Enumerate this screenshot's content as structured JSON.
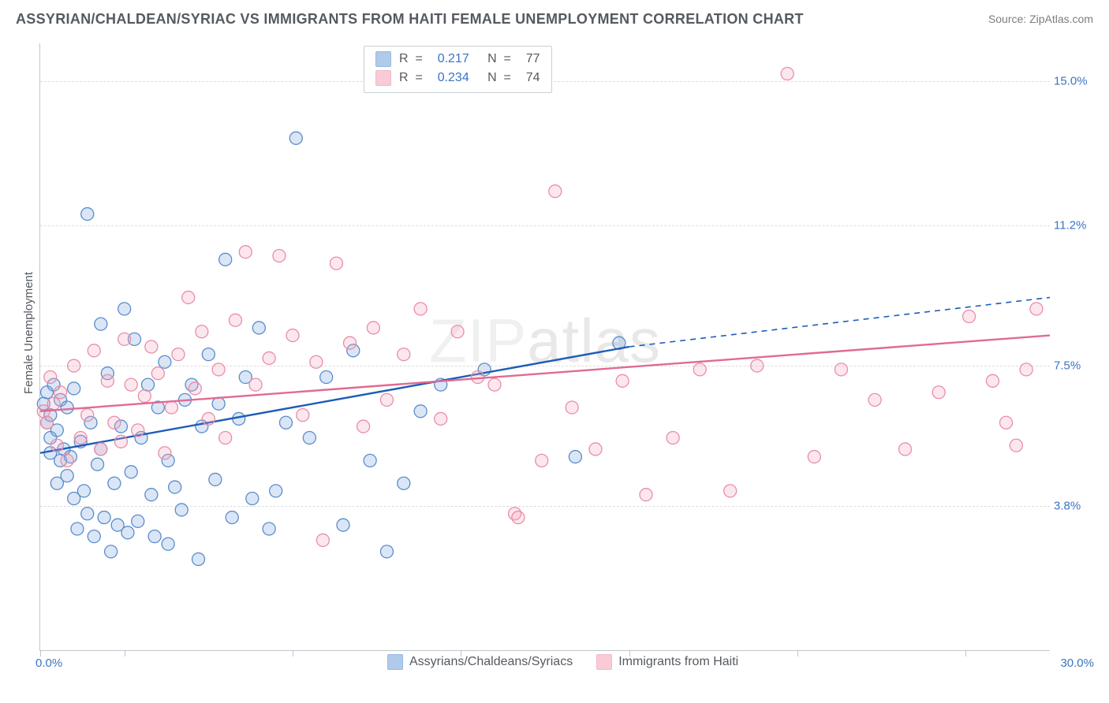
{
  "header": {
    "title": "ASSYRIAN/CHALDEAN/SYRIAC VS IMMIGRANTS FROM HAITI FEMALE UNEMPLOYMENT CORRELATION CHART",
    "source": "Source: ZipAtlas.com"
  },
  "watermark": {
    "pre": "ZIP",
    "post": "atlas"
  },
  "chart": {
    "type": "scatter",
    "ylabel": "Female Unemployment",
    "xlim": [
      0,
      30
    ],
    "ylim": [
      0,
      16
    ],
    "xlim_labels": {
      "min": "0.0%",
      "max": "30.0%"
    },
    "ytick_values": [
      3.8,
      7.5,
      11.2,
      15.0
    ],
    "ytick_labels": [
      "3.8%",
      "7.5%",
      "11.2%",
      "15.0%"
    ],
    "xtick_values": [
      0,
      2.5,
      7.5,
      12.5,
      17.5,
      22.5,
      27.5
    ],
    "background_color": "#ffffff",
    "grid_color": "#dcdcdc",
    "marker_radius": 8,
    "marker_fill_opacity": 0.28,
    "marker_stroke_width": 1.3,
    "regression_line_width": 2.4,
    "series": [
      {
        "id": "assyrians",
        "label": "Assyrians/Chaldeans/Syriacs",
        "fill": "#7ba7dd",
        "stroke": "#5a8ccb",
        "line_color": "#1e5db8",
        "r_value": "0.217",
        "n_value": "77",
        "regression": {
          "x1": 0,
          "y1": 5.2,
          "x2_solid": 17.5,
          "y2_solid": 8.0,
          "x2_dash": 30,
          "y2_dash": 9.3
        },
        "points": [
          [
            0.1,
            6.5
          ],
          [
            0.2,
            6.0
          ],
          [
            0.2,
            6.8
          ],
          [
            0.3,
            6.2
          ],
          [
            0.3,
            5.2
          ],
          [
            0.3,
            5.6
          ],
          [
            0.4,
            7.0
          ],
          [
            0.5,
            5.8
          ],
          [
            0.5,
            4.4
          ],
          [
            0.6,
            6.6
          ],
          [
            0.6,
            5.0
          ],
          [
            0.7,
            5.3
          ],
          [
            0.8,
            6.4
          ],
          [
            0.8,
            4.6
          ],
          [
            0.9,
            5.1
          ],
          [
            1.0,
            6.9
          ],
          [
            1.0,
            4.0
          ],
          [
            1.1,
            3.2
          ],
          [
            1.2,
            5.5
          ],
          [
            1.3,
            4.2
          ],
          [
            1.4,
            3.6
          ],
          [
            1.4,
            11.5
          ],
          [
            1.5,
            6.0
          ],
          [
            1.6,
            3.0
          ],
          [
            1.7,
            4.9
          ],
          [
            1.8,
            8.6
          ],
          [
            1.8,
            5.3
          ],
          [
            1.9,
            3.5
          ],
          [
            2.0,
            7.3
          ],
          [
            2.1,
            2.6
          ],
          [
            2.2,
            4.4
          ],
          [
            2.3,
            3.3
          ],
          [
            2.4,
            5.9
          ],
          [
            2.5,
            9.0
          ],
          [
            2.6,
            3.1
          ],
          [
            2.7,
            4.7
          ],
          [
            2.8,
            8.2
          ],
          [
            2.9,
            3.4
          ],
          [
            3.0,
            5.6
          ],
          [
            3.2,
            7.0
          ],
          [
            3.3,
            4.1
          ],
          [
            3.4,
            3.0
          ],
          [
            3.5,
            6.4
          ],
          [
            3.7,
            7.6
          ],
          [
            3.8,
            5.0
          ],
          [
            3.8,
            2.8
          ],
          [
            4.0,
            4.3
          ],
          [
            4.2,
            3.7
          ],
          [
            4.3,
            6.6
          ],
          [
            4.5,
            7.0
          ],
          [
            4.7,
            2.4
          ],
          [
            4.8,
            5.9
          ],
          [
            5.0,
            7.8
          ],
          [
            5.2,
            4.5
          ],
          [
            5.3,
            6.5
          ],
          [
            5.5,
            10.3
          ],
          [
            5.7,
            3.5
          ],
          [
            5.9,
            6.1
          ],
          [
            6.1,
            7.2
          ],
          [
            6.3,
            4.0
          ],
          [
            6.5,
            8.5
          ],
          [
            6.8,
            3.2
          ],
          [
            7.0,
            4.2
          ],
          [
            7.3,
            6.0
          ],
          [
            7.6,
            13.5
          ],
          [
            8.0,
            5.6
          ],
          [
            8.5,
            7.2
          ],
          [
            9.0,
            3.3
          ],
          [
            9.3,
            7.9
          ],
          [
            9.8,
            5.0
          ],
          [
            10.3,
            2.6
          ],
          [
            10.8,
            4.4
          ],
          [
            11.3,
            6.3
          ],
          [
            11.9,
            7.0
          ],
          [
            13.2,
            7.4
          ],
          [
            15.9,
            5.1
          ],
          [
            17.2,
            8.1
          ]
        ]
      },
      {
        "id": "haiti",
        "label": "Immigrants from Haiti",
        "fill": "#f4a9be",
        "stroke": "#e88da8",
        "line_color": "#e16a93",
        "r_value": "0.234",
        "n_value": "74",
        "regression": {
          "x1": 0,
          "y1": 6.3,
          "x2_solid": 30,
          "y2_solid": 8.3,
          "x2_dash": 30,
          "y2_dash": 8.3
        },
        "points": [
          [
            0.1,
            6.3
          ],
          [
            0.2,
            6.0
          ],
          [
            0.3,
            7.2
          ],
          [
            0.4,
            6.5
          ],
          [
            0.5,
            5.4
          ],
          [
            0.6,
            6.8
          ],
          [
            0.8,
            5.0
          ],
          [
            1.0,
            7.5
          ],
          [
            1.2,
            5.6
          ],
          [
            1.4,
            6.2
          ],
          [
            1.6,
            7.9
          ],
          [
            1.8,
            5.3
          ],
          [
            2.0,
            7.1
          ],
          [
            2.2,
            6.0
          ],
          [
            2.4,
            5.5
          ],
          [
            2.5,
            8.2
          ],
          [
            2.7,
            7.0
          ],
          [
            2.9,
            5.8
          ],
          [
            3.1,
            6.7
          ],
          [
            3.3,
            8.0
          ],
          [
            3.5,
            7.3
          ],
          [
            3.7,
            5.2
          ],
          [
            3.9,
            6.4
          ],
          [
            4.1,
            7.8
          ],
          [
            4.4,
            9.3
          ],
          [
            4.6,
            6.9
          ],
          [
            4.8,
            8.4
          ],
          [
            5.0,
            6.1
          ],
          [
            5.3,
            7.4
          ],
          [
            5.5,
            5.6
          ],
          [
            5.8,
            8.7
          ],
          [
            6.1,
            10.5
          ],
          [
            6.4,
            7.0
          ],
          [
            6.8,
            7.7
          ],
          [
            7.1,
            10.4
          ],
          [
            7.5,
            8.3
          ],
          [
            7.8,
            6.2
          ],
          [
            8.2,
            7.6
          ],
          [
            8.4,
            2.9
          ],
          [
            8.8,
            10.2
          ],
          [
            9.2,
            8.1
          ],
          [
            9.6,
            5.9
          ],
          [
            9.9,
            8.5
          ],
          [
            10.3,
            6.6
          ],
          [
            10.8,
            7.8
          ],
          [
            11.3,
            9.0
          ],
          [
            11.9,
            6.1
          ],
          [
            12.4,
            8.4
          ],
          [
            13.0,
            7.2
          ],
          [
            13.5,
            7.0
          ],
          [
            14.1,
            3.6
          ],
          [
            14.2,
            3.5
          ],
          [
            14.9,
            5.0
          ],
          [
            15.3,
            12.1
          ],
          [
            15.8,
            6.4
          ],
          [
            16.5,
            5.3
          ],
          [
            17.3,
            7.1
          ],
          [
            18.0,
            4.1
          ],
          [
            18.8,
            5.6
          ],
          [
            19.6,
            7.4
          ],
          [
            20.5,
            4.2
          ],
          [
            21.3,
            7.5
          ],
          [
            22.2,
            15.2
          ],
          [
            23.0,
            5.1
          ],
          [
            23.8,
            7.4
          ],
          [
            24.8,
            6.6
          ],
          [
            25.7,
            5.3
          ],
          [
            26.7,
            6.8
          ],
          [
            27.6,
            8.8
          ],
          [
            28.3,
            7.1
          ],
          [
            28.7,
            6.0
          ],
          [
            29.0,
            5.4
          ],
          [
            29.3,
            7.4
          ],
          [
            29.6,
            9.0
          ]
        ]
      }
    ]
  },
  "legend_text": {
    "r_label": "R  =  ",
    "n_label": "   N  =  "
  }
}
